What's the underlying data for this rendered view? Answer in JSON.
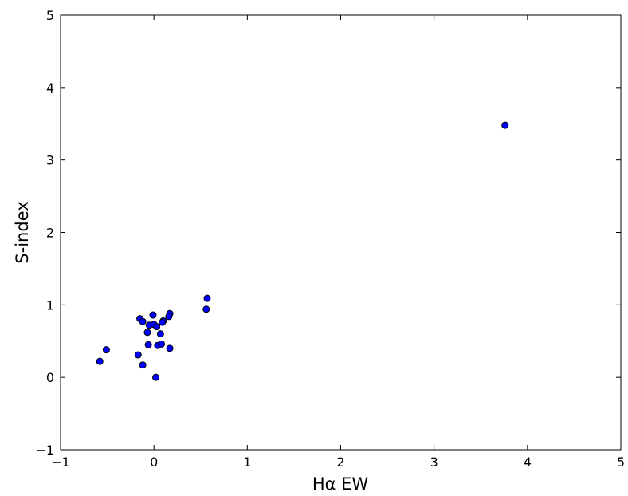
{
  "chart_data": {
    "type": "scatter",
    "title": "",
    "xlabel": "Hα EW",
    "ylabel": "S-index",
    "xlim": [
      -1,
      5
    ],
    "ylim": [
      -1,
      5
    ],
    "x_ticks": [
      -1,
      0,
      1,
      2,
      3,
      4,
      5
    ],
    "y_ticks": [
      -1,
      0,
      1,
      2,
      3,
      4,
      5
    ],
    "x_tick_labels": [
      "−1",
      "0",
      "1",
      "2",
      "3",
      "4",
      "5"
    ],
    "y_tick_labels": [
      "−1",
      "0",
      "1",
      "2",
      "3",
      "4",
      "5"
    ],
    "grid": false,
    "marker_color": "#0000ff",
    "marker_edge_color": "#000000",
    "series": [
      {
        "points": [
          {
            "x": 3.76,
            "y": 3.48
          },
          {
            "x": 0.57,
            "y": 1.09
          },
          {
            "x": 0.56,
            "y": 0.94
          },
          {
            "x": 0.17,
            "y": 0.88
          },
          {
            "x": 0.16,
            "y": 0.84
          },
          {
            "x": 0.1,
            "y": 0.78
          },
          {
            "x": 0.09,
            "y": 0.76
          },
          {
            "x": -0.15,
            "y": 0.81
          },
          {
            "x": -0.12,
            "y": 0.77
          },
          {
            "x": -0.01,
            "y": 0.86
          },
          {
            "x": -0.05,
            "y": 0.72
          },
          {
            "x": 0.0,
            "y": 0.73
          },
          {
            "x": 0.03,
            "y": 0.7
          },
          {
            "x": -0.07,
            "y": 0.62
          },
          {
            "x": 0.07,
            "y": 0.6
          },
          {
            "x": -0.06,
            "y": 0.45
          },
          {
            "x": 0.04,
            "y": 0.44
          },
          {
            "x": 0.08,
            "y": 0.46
          },
          {
            "x": 0.17,
            "y": 0.4
          },
          {
            "x": -0.51,
            "y": 0.38
          },
          {
            "x": -0.17,
            "y": 0.31
          },
          {
            "x": -0.58,
            "y": 0.22
          },
          {
            "x": -0.12,
            "y": 0.17
          },
          {
            "x": 0.02,
            "y": 0.0
          }
        ]
      }
    ]
  }
}
